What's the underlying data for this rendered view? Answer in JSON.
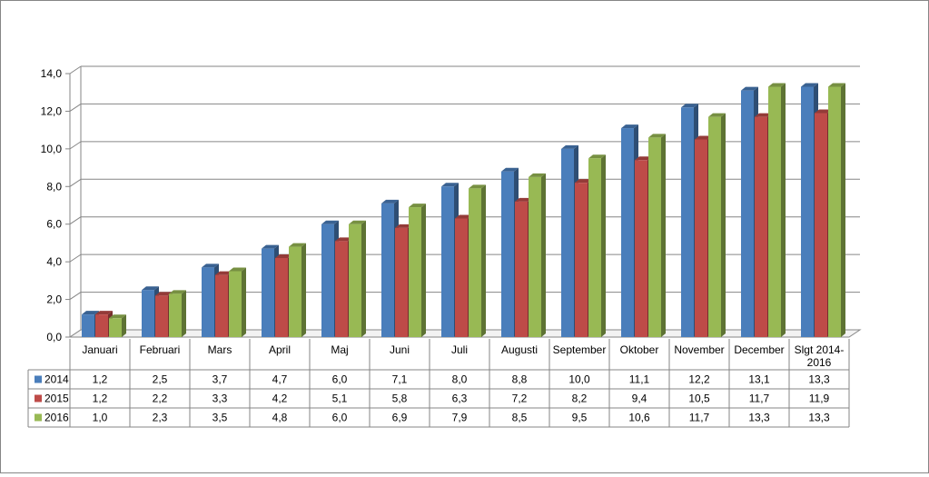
{
  "chart_data": {
    "type": "bar",
    "title": "",
    "xlabel": "",
    "ylabel": "",
    "ylim": [
      0,
      14
    ],
    "yticks": [
      "0,0",
      "2,0",
      "4,0",
      "6,0",
      "8,0",
      "10,0",
      "12,0",
      "14,0"
    ],
    "ytick_values": [
      0,
      2,
      4,
      6,
      8,
      10,
      12,
      14
    ],
    "grid": true,
    "legend_placement": "data-table",
    "categories": [
      "Januari",
      "Februari",
      "Mars",
      "April",
      "Maj",
      "Juni",
      "Juli",
      "Augusti",
      "September",
      "Oktober",
      "November",
      "December",
      "Slgt 2014-2016"
    ],
    "category_lines": [
      [
        "Januari"
      ],
      [
        "Februari"
      ],
      [
        "Mars"
      ],
      [
        "April"
      ],
      [
        "Maj"
      ],
      [
        "Juni"
      ],
      [
        "Juli"
      ],
      [
        "Augusti"
      ],
      [
        "September"
      ],
      [
        "Oktober"
      ],
      [
        "November"
      ],
      [
        "December"
      ],
      [
        "Slgt 2014-",
        "2016"
      ]
    ],
    "series": [
      {
        "name": "2014",
        "color": "#4a7ebb",
        "values": [
          1.2,
          2.5,
          3.7,
          4.7,
          6.0,
          7.1,
          8.0,
          8.8,
          10.0,
          11.1,
          12.2,
          13.1,
          13.3
        ],
        "labels": [
          "1,2",
          "2,5",
          "3,7",
          "4,7",
          "6,0",
          "7,1",
          "8,0",
          "8,8",
          "10,0",
          "11,1",
          "12,2",
          "13,1",
          "13,3"
        ]
      },
      {
        "name": "2015",
        "color": "#be4b48",
        "values": [
          1.2,
          2.2,
          3.3,
          4.2,
          5.1,
          5.8,
          6.3,
          7.2,
          8.2,
          9.4,
          10.5,
          11.7,
          11.9
        ],
        "labels": [
          "1,2",
          "2,2",
          "3,3",
          "4,2",
          "5,1",
          "5,8",
          "6,3",
          "7,2",
          "8,2",
          "9,4",
          "10,5",
          "11,7",
          "11,9"
        ]
      },
      {
        "name": "2016",
        "color": "#98b954",
        "values": [
          1.0,
          2.3,
          3.5,
          4.8,
          6.0,
          6.9,
          7.9,
          8.5,
          9.5,
          10.6,
          11.7,
          13.3,
          13.3
        ],
        "labels": [
          "1,0",
          "2,3",
          "3,5",
          "4,8",
          "6,0",
          "6,9",
          "7,9",
          "8,5",
          "9,5",
          "10,6",
          "11,7",
          "13,3",
          "13,3"
        ]
      }
    ]
  }
}
